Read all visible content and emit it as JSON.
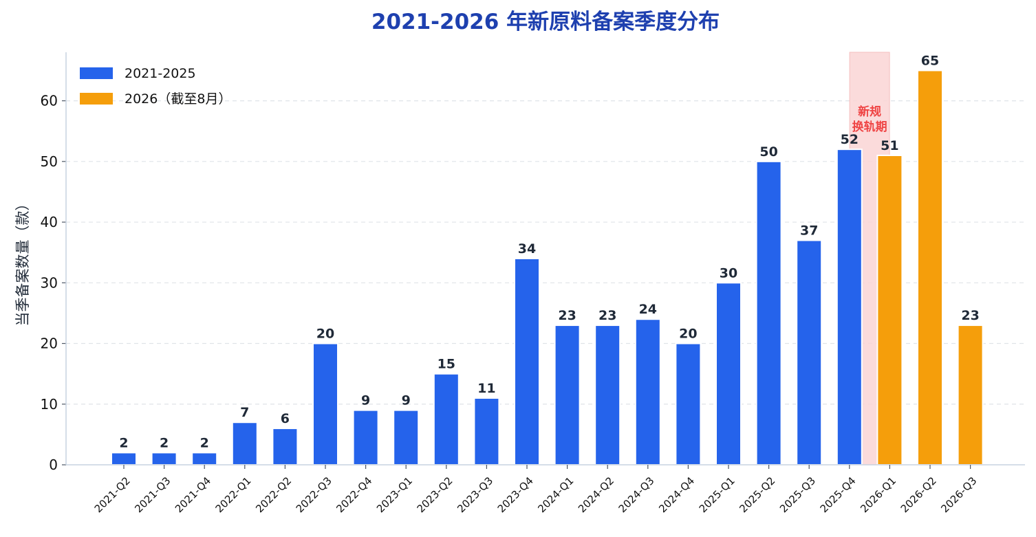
{
  "chart_data": {
    "type": "bar",
    "title": "2021-2026 年新原料备案季度分布",
    "ylabel": "当季备案数量（款）",
    "xlabel": "",
    "ylim": [
      0,
      68
    ],
    "yticks": [
      0,
      10,
      20,
      30,
      40,
      50,
      60
    ],
    "grid": "y-dashed",
    "legend_position": "top-left",
    "categories": [
      "2021-Q2",
      "2021-Q3",
      "2021-Q4",
      "2022-Q1",
      "2022-Q2",
      "2022-Q3",
      "2022-Q4",
      "2023-Q1",
      "2023-Q2",
      "2023-Q3",
      "2023-Q4",
      "2024-Q1",
      "2024-Q2",
      "2024-Q3",
      "2024-Q4",
      "2025-Q1",
      "2025-Q2",
      "2025-Q3",
      "2025-Q4",
      "2026-Q1",
      "2026-Q2",
      "2026-Q3"
    ],
    "values": [
      2,
      2,
      2,
      7,
      6,
      20,
      9,
      9,
      15,
      11,
      34,
      23,
      23,
      24,
      20,
      30,
      50,
      37,
      52,
      51,
      65,
      23
    ],
    "groups": [
      "a",
      "a",
      "a",
      "a",
      "a",
      "a",
      "a",
      "a",
      "a",
      "a",
      "a",
      "a",
      "a",
      "a",
      "a",
      "a",
      "a",
      "a",
      "a",
      "b",
      "b",
      "b"
    ],
    "series": [
      {
        "key": "a",
        "name": "2021-2025",
        "color": "#2563eb"
      },
      {
        "key": "b",
        "name": "2026（截至8月）",
        "color": "#f59e0b"
      }
    ],
    "annotation": {
      "lines": [
        "新规",
        "换轨期"
      ],
      "span_categories": [
        "2025-Q4",
        "2026-Q1"
      ],
      "color": "#ef4444",
      "fill": "#fbd5d5"
    }
  }
}
